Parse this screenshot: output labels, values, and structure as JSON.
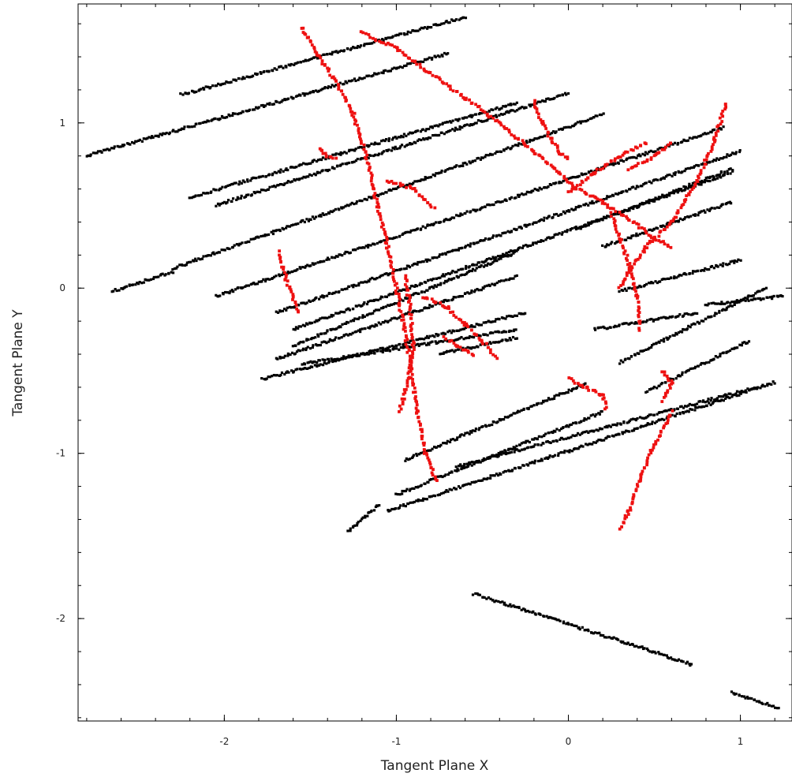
{
  "chart_data": {
    "type": "scatter",
    "xlabel": "Tangent Plane X",
    "ylabel": "Tangent Plane Y",
    "xlim": [
      -2.85,
      1.3
    ],
    "ylim": [
      -2.62,
      1.72
    ],
    "x_ticks": [
      -2,
      -1,
      0,
      1
    ],
    "x_tick_labels": [
      "-2",
      "-1",
      "0",
      "1"
    ],
    "y_ticks": [
      -2,
      -1,
      0,
      1
    ],
    "y_tick_labels": [
      "-2",
      "-1",
      "0",
      "1"
    ],
    "grid": false,
    "legend": "none",
    "series": [
      {
        "color": "#000000",
        "style": "streaks",
        "segments": [
          [
            [
              -2.25,
              1.17
            ],
            [
              -0.6,
              1.64
            ]
          ],
          [
            [
              -2.8,
              0.8
            ],
            [
              -0.7,
              1.42
            ]
          ],
          [
            [
              -2.2,
              0.55
            ],
            [
              -0.3,
              1.12
            ]
          ],
          [
            [
              -2.05,
              0.5
            ],
            [
              0.0,
              1.18
            ]
          ],
          [
            [
              -2.3,
              0.12
            ],
            [
              0.2,
              1.05
            ]
          ],
          [
            [
              -2.65,
              -0.02
            ],
            [
              -2.3,
              0.1
            ]
          ],
          [
            [
              -2.05,
              -0.05
            ],
            [
              0.9,
              0.97
            ]
          ],
          [
            [
              -1.7,
              -0.15
            ],
            [
              1.0,
              0.83
            ]
          ],
          [
            [
              -1.6,
              -0.25
            ],
            [
              0.95,
              0.7
            ]
          ],
          [
            [
              -1.7,
              -0.43
            ],
            [
              -0.3,
              0.07
            ]
          ],
          [
            [
              -1.6,
              -0.35
            ],
            [
              -0.3,
              0.22
            ]
          ],
          [
            [
              -1.78,
              -0.55
            ],
            [
              -0.25,
              -0.15
            ]
          ],
          [
            [
              -1.55,
              -0.46
            ],
            [
              -0.3,
              -0.25
            ]
          ],
          [
            [
              -0.75,
              -0.4
            ],
            [
              -0.3,
              -0.3
            ]
          ],
          [
            [
              0.05,
              0.36
            ],
            [
              0.95,
              0.72
            ]
          ],
          [
            [
              0.2,
              0.25
            ],
            [
              0.95,
              0.52
            ]
          ],
          [
            [
              0.3,
              -0.02
            ],
            [
              1.0,
              0.17
            ]
          ],
          [
            [
              0.15,
              -0.25
            ],
            [
              0.75,
              -0.15
            ]
          ],
          [
            [
              0.8,
              -0.1
            ],
            [
              1.25,
              -0.05
            ]
          ],
          [
            [
              0.3,
              -0.45
            ],
            [
              1.15,
              0.0
            ]
          ],
          [
            [
              0.45,
              -0.63
            ],
            [
              1.05,
              -0.32
            ]
          ],
          [
            [
              -0.95,
              -1.04
            ],
            [
              0.1,
              -0.58
            ]
          ],
          [
            [
              -1.0,
              -1.25
            ],
            [
              0.2,
              -0.75
            ]
          ],
          [
            [
              -1.05,
              -1.35
            ],
            [
              1.2,
              -0.57
            ]
          ],
          [
            [
              -0.65,
              -1.08
            ],
            [
              1.1,
              -0.6
            ]
          ],
          [
            [
              -1.28,
              -1.47
            ],
            [
              -1.1,
              -1.31
            ]
          ],
          [
            [
              -0.55,
              -1.85
            ],
            [
              0.35,
              -2.15
            ]
          ],
          [
            [
              0.35,
              -2.15
            ],
            [
              0.72,
              -2.28
            ]
          ],
          [
            [
              0.95,
              -2.45
            ],
            [
              1.22,
              -2.54
            ]
          ]
        ]
      },
      {
        "color": "#ee1111",
        "style": "tracks",
        "tracks": [
          [
            [
              -1.55,
              1.58
            ],
            [
              -1.45,
              1.4
            ],
            [
              -1.35,
              1.25
            ],
            [
              -1.25,
              1.05
            ],
            [
              -1.18,
              0.82
            ],
            [
              -1.12,
              0.55
            ],
            [
              -1.05,
              0.25
            ],
            [
              -0.98,
              -0.1
            ],
            [
              -0.92,
              -0.45
            ],
            [
              -0.88,
              -0.75
            ],
            [
              -0.83,
              -1.0
            ],
            [
              -0.77,
              -1.17
            ]
          ],
          [
            [
              -1.2,
              1.55
            ],
            [
              -1.0,
              1.45
            ],
            [
              -0.8,
              1.3
            ],
            [
              -0.6,
              1.15
            ],
            [
              -0.4,
              1.0
            ],
            [
              -0.2,
              0.82
            ],
            [
              -0.05,
              0.7
            ],
            [
              0.05,
              0.6
            ],
            [
              0.2,
              0.52
            ],
            [
              0.35,
              0.42
            ],
            [
              0.5,
              0.3
            ],
            [
              0.6,
              0.25
            ]
          ],
          [
            [
              -0.2,
              1.13
            ],
            [
              -0.15,
              1.0
            ],
            [
              -0.1,
              0.9
            ],
            [
              -0.05,
              0.82
            ],
            [
              0.0,
              0.78
            ]
          ],
          [
            [
              0.0,
              0.58
            ],
            [
              0.15,
              0.7
            ],
            [
              0.3,
              0.8
            ],
            [
              0.45,
              0.88
            ]
          ],
          [
            [
              0.35,
              0.72
            ],
            [
              0.5,
              0.8
            ],
            [
              0.6,
              0.88
            ]
          ],
          [
            [
              0.92,
              1.12
            ],
            [
              0.85,
              0.9
            ],
            [
              0.75,
              0.65
            ],
            [
              0.6,
              0.4
            ],
            [
              0.45,
              0.25
            ],
            [
              0.35,
              0.1
            ],
            [
              0.3,
              0.0
            ]
          ],
          [
            [
              0.25,
              0.45
            ],
            [
              0.3,
              0.3
            ],
            [
              0.35,
              0.15
            ],
            [
              0.4,
              -0.05
            ],
            [
              0.42,
              -0.25
            ]
          ],
          [
            [
              -1.05,
              0.65
            ],
            [
              -0.9,
              0.6
            ],
            [
              -0.78,
              0.48
            ]
          ],
          [
            [
              -1.45,
              0.85
            ],
            [
              -1.4,
              0.8
            ],
            [
              -1.35,
              0.78
            ]
          ],
          [
            [
              -1.68,
              0.22
            ],
            [
              -1.64,
              0.05
            ],
            [
              -1.6,
              -0.05
            ],
            [
              -1.57,
              -0.15
            ]
          ],
          [
            [
              -0.95,
              0.08
            ],
            [
              -0.92,
              -0.12
            ],
            [
              -0.9,
              -0.35
            ],
            [
              -0.93,
              -0.55
            ],
            [
              -0.98,
              -0.75
            ]
          ],
          [
            [
              -0.85,
              -0.05
            ],
            [
              -0.7,
              -0.12
            ],
            [
              -0.6,
              -0.22
            ],
            [
              -0.5,
              -0.32
            ],
            [
              -0.42,
              -0.42
            ]
          ],
          [
            [
              -0.72,
              -0.3
            ],
            [
              -0.65,
              -0.35
            ],
            [
              -0.55,
              -0.4
            ]
          ],
          [
            [
              0.0,
              -0.55
            ],
            [
              0.1,
              -0.6
            ],
            [
              0.2,
              -0.65
            ],
            [
              0.22,
              -0.73
            ]
          ],
          [
            [
              0.55,
              -0.5
            ],
            [
              0.6,
              -0.58
            ],
            [
              0.55,
              -0.68
            ]
          ],
          [
            [
              0.6,
              -0.75
            ],
            [
              0.5,
              -0.95
            ],
            [
              0.42,
              -1.15
            ],
            [
              0.35,
              -1.35
            ],
            [
              0.3,
              -1.45
            ]
          ]
        ]
      }
    ]
  }
}
